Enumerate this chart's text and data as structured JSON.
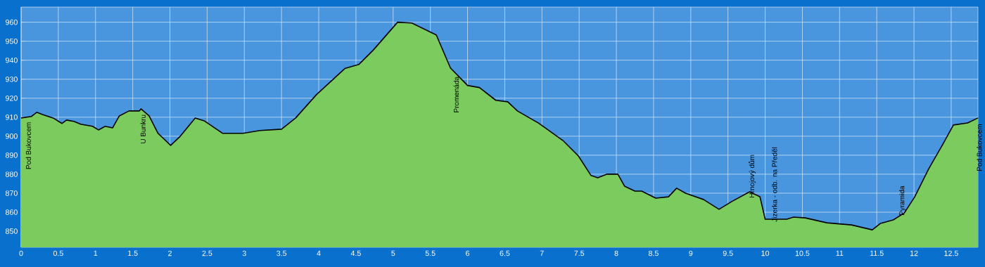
{
  "chart_data": {
    "type": "area",
    "x": [
      0,
      0.14,
      0.21,
      0.28,
      0.43,
      0.55,
      0.61,
      0.71,
      0.8,
      0.96,
      1.04,
      1.13,
      1.23,
      1.32,
      1.45,
      1.59,
      1.61,
      1.72,
      1.84,
      2.01,
      2.13,
      2.34,
      2.46,
      2.71,
      2.98,
      3.21,
      3.5,
      3.69,
      3.97,
      4.35,
      4.54,
      4.73,
      5.06,
      5.25,
      5.58,
      5.77,
      6.0,
      6.16,
      6.38,
      6.54,
      6.67,
      6.95,
      7.28,
      7.49,
      7.66,
      7.75,
      7.87,
      8.02,
      8.11,
      8.25,
      8.34,
      8.53,
      8.7,
      8.81,
      8.93,
      9.17,
      9.38,
      9.55,
      9.79,
      9.93,
      10.0,
      10.29,
      10.38,
      10.54,
      10.83,
      11.16,
      11.44,
      11.55,
      11.72,
      11.87,
      12.01,
      12.2,
      12.39,
      12.53,
      12.72,
      12.86
    ],
    "series": [
      {
        "color": "#7ccb5e",
        "values": [
          909.6,
          910.4,
          912.6,
          911.5,
          909.6,
          906.7,
          908.5,
          907.8,
          906.3,
          905.2,
          903.3,
          905.2,
          904.4,
          910.7,
          913.3,
          913.3,
          914.4,
          910.7,
          901.5,
          895.2,
          899.6,
          909.6,
          908.1,
          901.5,
          901.5,
          903,
          903.7,
          909.6,
          921.9,
          935.6,
          937.8,
          945.2,
          960,
          959.6,
          953.3,
          935.9,
          926.7,
          925.6,
          918.9,
          918.1,
          913.3,
          907,
          897.8,
          889.6,
          879.3,
          878.1,
          880,
          880,
          873.7,
          871.1,
          871.1,
          867.4,
          868.1,
          872.6,
          870,
          866.7,
          861.5,
          865.6,
          870.7,
          868.1,
          856.3,
          856.3,
          857.4,
          857,
          854.4,
          853.3,
          850.7,
          854.1,
          855.9,
          859.6,
          868.1,
          883,
          895.9,
          905.9,
          907,
          909.6
        ]
      }
    ],
    "xlim": [
      0,
      12.86
    ],
    "ylim": [
      841.5,
      968
    ],
    "xticks": [
      0,
      {
        "value": 0.5,
        "label": "0.5"
      },
      1,
      {
        "value": 1.5,
        "label": "1.5"
      },
      2,
      {
        "value": 2.5,
        "label": "2.5"
      },
      3,
      {
        "value": 3.5,
        "label": "3.5"
      },
      4,
      {
        "value": 4.5,
        "label": "4.5"
      },
      5,
      {
        "value": 5.5,
        "label": "5.5"
      },
      6,
      {
        "value": 6.5,
        "label": "6.5"
      },
      7,
      {
        "value": 7.5,
        "label": "7.5"
      },
      8,
      {
        "value": 8.5,
        "label": "8.5"
      },
      9,
      {
        "value": 9.5,
        "label": "9.5"
      },
      10,
      {
        "value": 10.5,
        "label": "10.5"
      },
      11,
      {
        "value": 11.5,
        "label": "11.5"
      },
      12,
      {
        "value": 12.5,
        "label": "12.5"
      }
    ],
    "yticks": [
      850,
      860,
      870,
      880,
      890,
      900,
      910,
      920,
      930,
      940,
      950,
      960
    ],
    "grid": true,
    "annotations": [
      {
        "text": "Pod Bukovcem",
        "x": 0.06,
        "y": 910
      },
      {
        "text": "U Bunkru",
        "x": 1.6,
        "y": 914
      },
      {
        "text": "Promenáda",
        "x": 5.81,
        "y": 934
      },
      {
        "text": "Hrnojový dům",
        "x": 9.85,
        "y": 868.9
      },
      {
        "text": "Jizerka - odb. na Předěl",
        "x": 10.15,
        "y": 856.3
      },
      {
        "text": "Pyramida",
        "x": 11.87,
        "y": 859.6
      },
      {
        "text": "Pod Bukovcem",
        "x": 12.84,
        "y": 909
      }
    ]
  }
}
